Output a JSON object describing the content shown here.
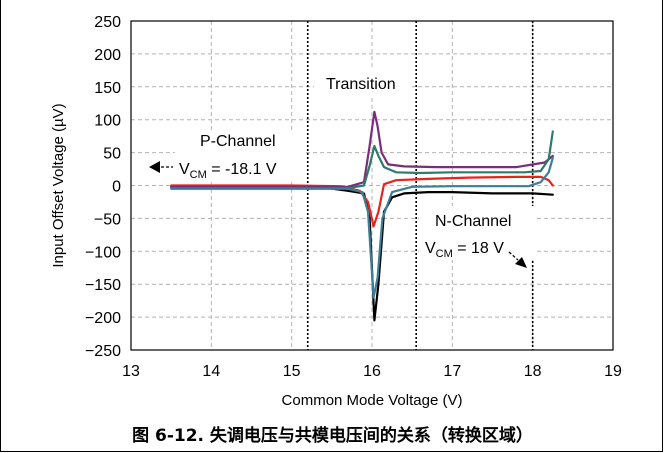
{
  "chart_data": {
    "type": "line",
    "xlabel": "Common Mode Voltage (V)",
    "ylabel": "Input Offset Voltage (µV)",
    "xlim": [
      13,
      19
    ],
    "ylim": [
      -250,
      250
    ],
    "x_ticks": [
      "13",
      "14",
      "15",
      "16",
      "17",
      "18",
      "19"
    ],
    "y_ticks": [
      "250",
      "200",
      "150",
      "100",
      "50",
      "0",
      "−50",
      "−100",
      "−150",
      "−200",
      "−250"
    ],
    "grid": true,
    "region_dividers_x": [
      15.2,
      16.55,
      18.0
    ],
    "annotations": {
      "transition": "Transition",
      "p_channel": "P-Channel",
      "p_vcm_v": "V",
      "p_vcm_sub": "CM",
      "p_vcm_value": " = -18.1 V",
      "n_channel": "N-Channel",
      "n_vcm_v": "V",
      "n_vcm_sub": "CM",
      "n_vcm_value": " = 18 V"
    },
    "series": [
      {
        "color": "#000000",
        "x": [
          13.5,
          15.0,
          15.4,
          15.7,
          15.9,
          15.97,
          16.03,
          16.08,
          16.15,
          16.25,
          16.4,
          16.7,
          17.0,
          17.5,
          18.0,
          18.25
        ],
        "y": [
          -2,
          -2,
          -3,
          -8,
          -12,
          -50,
          -205,
          -150,
          -40,
          -18,
          -12,
          -10,
          -10,
          -12,
          -12,
          -14
        ]
      },
      {
        "color": "#e8231c",
        "x": [
          13.5,
          15.0,
          15.6,
          15.85,
          15.95,
          16.02,
          16.08,
          16.15,
          16.3,
          16.7,
          17.2,
          17.8,
          18.1,
          18.2,
          18.25
        ],
        "y": [
          0,
          0,
          -1,
          -8,
          -25,
          -62,
          -40,
          2,
          8,
          10,
          12,
          13,
          13,
          8,
          0
        ]
      },
      {
        "color": "#7b2d7b",
        "x": [
          13.5,
          15.0,
          15.7,
          15.9,
          15.97,
          16.03,
          16.07,
          16.12,
          16.2,
          16.4,
          16.8,
          17.3,
          17.8,
          18.15,
          18.25
        ],
        "y": [
          -2,
          -2,
          -2,
          5,
          60,
          112,
          90,
          50,
          32,
          29,
          28,
          28,
          28,
          35,
          45
        ]
      },
      {
        "color": "#2e7b6b",
        "x": [
          13.5,
          15.0,
          15.7,
          15.9,
          15.97,
          16.03,
          16.08,
          16.15,
          16.3,
          16.6,
          17.0,
          17.5,
          17.9,
          18.1,
          18.2,
          18.25
        ],
        "y": [
          -4,
          -4,
          -4,
          0,
          30,
          60,
          45,
          28,
          20,
          19,
          20,
          20,
          20,
          22,
          40,
          82
        ]
      },
      {
        "color": "#3b7f96",
        "x": [
          13.5,
          15.0,
          15.7,
          15.88,
          15.95,
          16.02,
          16.07,
          16.13,
          16.25,
          16.5,
          17.0,
          17.5,
          17.95,
          18.1,
          18.2,
          18.25
        ],
        "y": [
          -5,
          -5,
          -5,
          -10,
          -40,
          -170,
          -140,
          -50,
          -10,
          -2,
          -1,
          -1,
          -1,
          5,
          20,
          42
        ]
      }
    ]
  },
  "caption": "图 6-12. 失调电压与共模电压间的关系（转换区域）"
}
